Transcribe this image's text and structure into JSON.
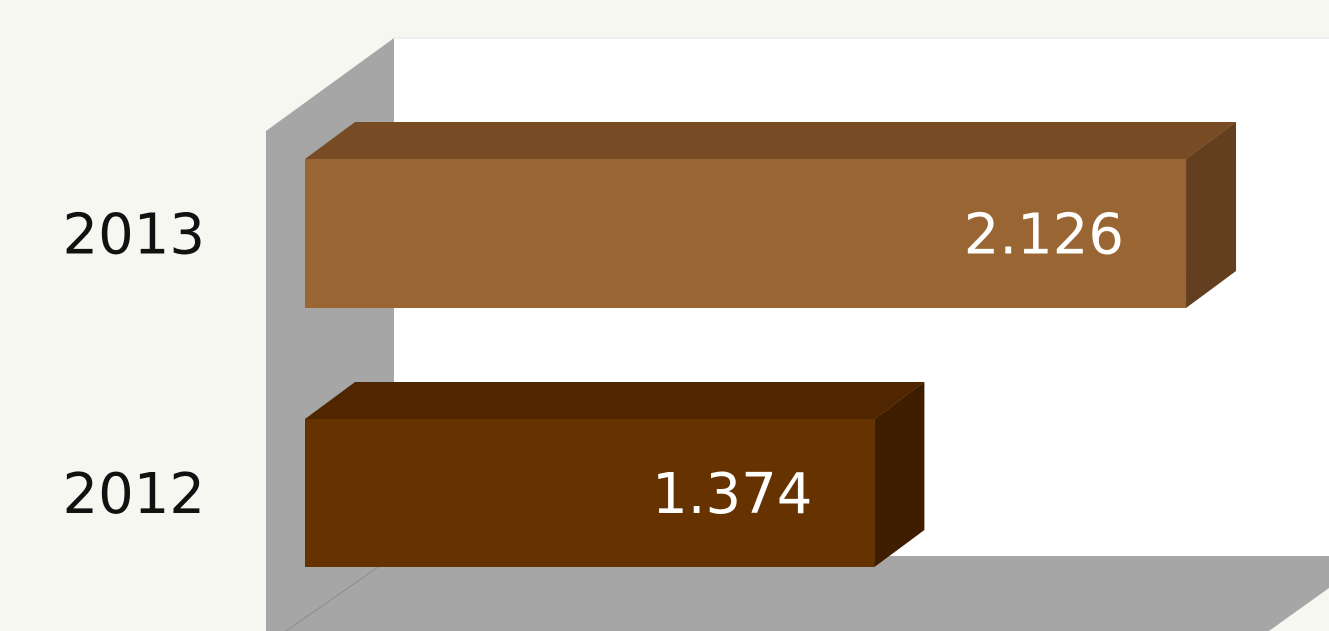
{
  "chart_data": {
    "type": "bar",
    "orientation": "horizontal",
    "three_d": true,
    "categories": [
      "2013",
      "2012"
    ],
    "values": [
      2.126,
      1.374
    ],
    "value_labels": [
      "2.126",
      "1.374"
    ],
    "xlim": [
      0,
      2.22
    ],
    "grid": false,
    "legend": "none",
    "title": "",
    "xlabel": "",
    "ylabel": ""
  },
  "colors": {
    "background": "#f5f7f0",
    "plot_wall": "#ffffff",
    "wall_side": "#a6a6a6",
    "bars": [
      {
        "front": "#996633",
        "top": "#774c25",
        "side": "#643f1f"
      },
      {
        "front": "#663300",
        "top": "#502600",
        "side": "#3f1e00"
      }
    ]
  }
}
